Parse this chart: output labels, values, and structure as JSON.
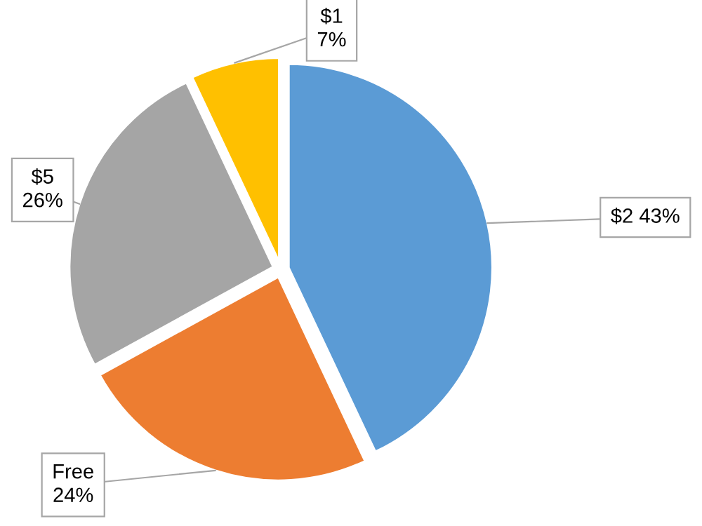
{
  "chart_data": {
    "type": "pie",
    "categories": [
      "$2",
      "Free",
      "$5",
      "$1"
    ],
    "values": [
      43,
      24,
      26,
      7
    ],
    "colors": [
      "#5b9bd5",
      "#ed7d31",
      "#a5a5a5",
      "#ffc000"
    ],
    "value_labels": [
      "43%",
      "24%",
      "26%",
      "7%"
    ],
    "legend": false
  }
}
